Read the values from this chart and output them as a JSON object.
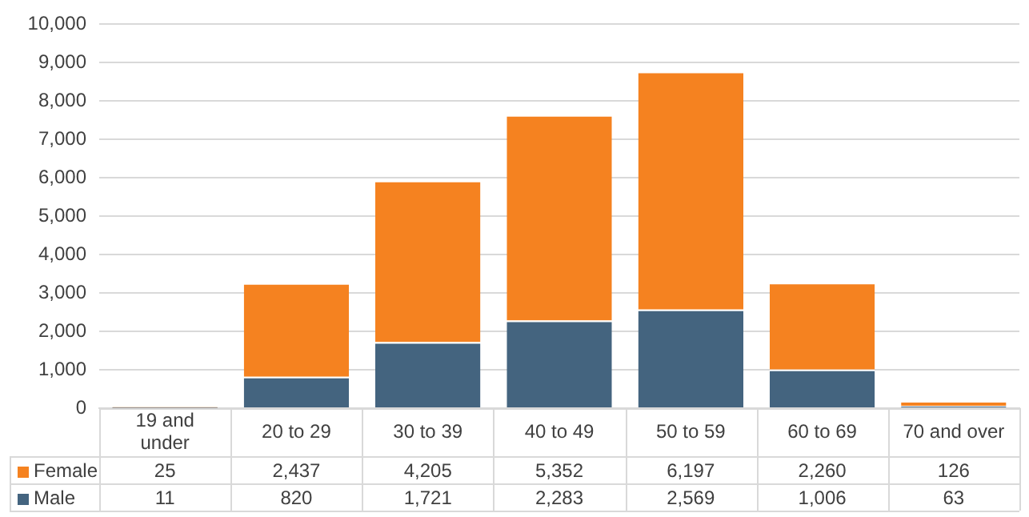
{
  "chart_data": {
    "type": "bar",
    "stacked": true,
    "categories": [
      "19 and under",
      "20 to 29",
      "30 to 39",
      "40 to 49",
      "50 to 59",
      "60 to 69",
      "70 and over"
    ],
    "series": [
      {
        "name": "Male",
        "color": "#44647f",
        "values": [
          11,
          820,
          1721,
          2283,
          2569,
          1006,
          63
        ],
        "value_labels": [
          "11",
          "820",
          "1,721",
          "2,283",
          "2,569",
          "1,006",
          "63"
        ]
      },
      {
        "name": "Female",
        "color": "#f58220",
        "values": [
          25,
          2437,
          4205,
          5352,
          6197,
          2260,
          126
        ],
        "value_labels": [
          "25",
          "2,437",
          "4,205",
          "5,352",
          "6,197",
          "2,260",
          "126"
        ]
      }
    ],
    "ylim": [
      0,
      10000
    ],
    "yticks": [
      0,
      {
        "value": 1000,
        "label": "1,000"
      },
      {
        "value": 2000,
        "label": "2,000"
      },
      {
        "value": 3000,
        "label": "3,000"
      },
      {
        "value": 4000,
        "label": "4,000"
      },
      {
        "value": 5000,
        "label": "5,000"
      },
      {
        "value": 6000,
        "label": "6,000"
      },
      {
        "value": 7000,
        "label": "7,000"
      },
      {
        "value": 8000,
        "label": "8,000"
      },
      {
        "value": 9000,
        "label": "9,000"
      },
      {
        "value": 10000,
        "label": "10,000"
      }
    ],
    "grid": "y",
    "legend": "bottom left"
  }
}
